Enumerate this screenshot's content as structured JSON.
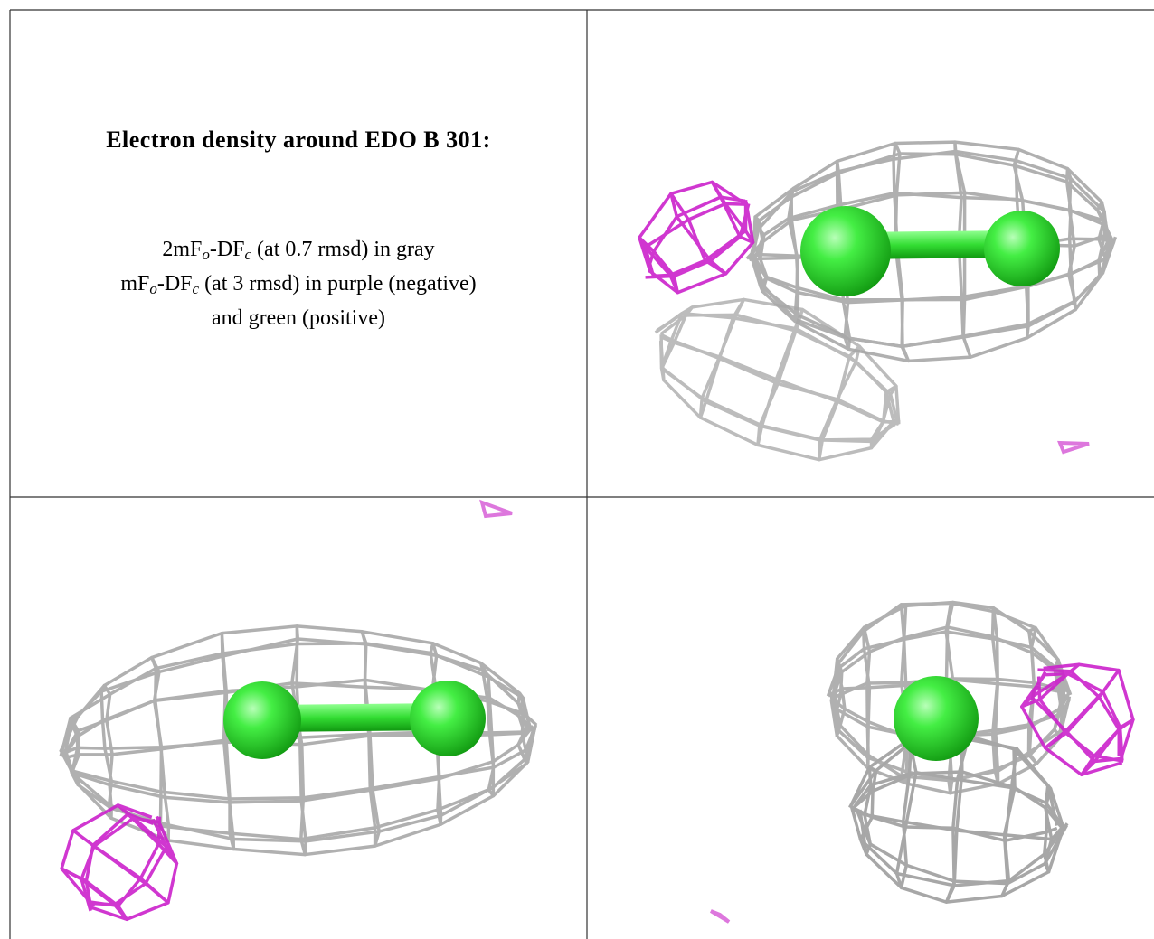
{
  "title": "Electron density around EDO B 301:",
  "lines": [
    [
      "2mF",
      "o",
      "-DF",
      "c",
      " (at 0.7 rmsd) in gray"
    ],
    [
      "mF",
      "o",
      "-DF",
      "c",
      " (at 3 rmsd) in purple (negative)"
    ],
    [
      "and green (positive)"
    ]
  ]
}
